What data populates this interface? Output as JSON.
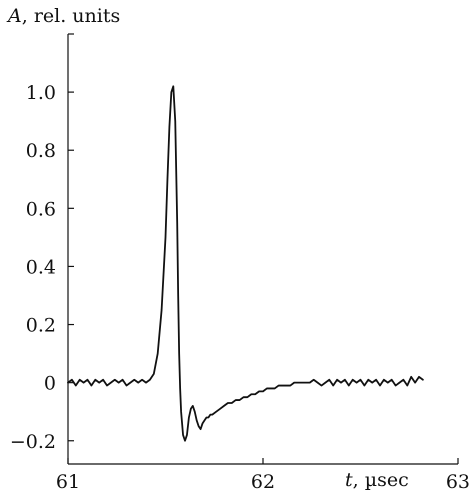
{
  "chart_data": {
    "type": "line",
    "title": "",
    "xlabel_italic": "t",
    "xlabel_rest": ", µsec",
    "ylabel_italic": "A",
    "ylabel_rest": ", rel. units",
    "xlim": [
      61,
      63
    ],
    "ylim": [
      -0.28,
      1.2
    ],
    "x_ticks": [
      61,
      62,
      63
    ],
    "x_tick_labels": [
      "61",
      "62",
      "63"
    ],
    "y_ticks": [
      -0.2,
      0,
      0.2,
      0.4,
      0.6,
      0.8,
      1.0
    ],
    "y_tick_labels": [
      "−0.2",
      "0",
      "0.2",
      "0.4",
      "0.6",
      "0.8",
      "1.0"
    ],
    "grid": false,
    "line_color": "#111111",
    "series": [
      {
        "x": [
          61.0,
          61.02,
          61.04,
          61.06,
          61.08,
          61.1,
          61.12,
          61.14,
          61.16,
          61.18,
          61.2,
          61.22,
          61.24,
          61.26,
          61.28,
          61.3,
          61.32,
          61.34,
          61.36,
          61.38,
          61.4,
          61.42,
          61.44,
          61.46,
          61.48,
          61.5,
          61.51,
          61.52,
          61.53,
          61.54,
          61.55,
          61.56,
          61.565,
          61.57,
          61.575,
          61.58,
          61.59,
          61.6,
          61.61,
          61.62,
          61.63,
          61.64,
          61.65,
          61.66,
          61.67,
          61.68,
          61.69,
          61.7,
          61.71,
          61.72,
          61.73,
          61.74,
          61.76,
          61.78,
          61.8,
          61.82,
          61.84,
          61.86,
          61.88,
          61.9,
          61.92,
          61.94,
          61.96,
          61.98,
          62.0,
          62.02,
          62.04,
          62.06,
          62.08,
          62.1,
          62.12,
          62.14,
          62.16,
          62.18,
          62.2,
          62.22,
          62.24,
          62.26,
          62.28,
          62.3,
          62.32,
          62.34,
          62.36,
          62.38,
          62.4,
          62.42,
          62.44,
          62.46,
          62.48,
          62.5,
          62.52,
          62.54,
          62.56,
          62.58,
          62.6,
          62.62,
          62.64,
          62.66,
          62.68,
          62.7,
          62.72,
          62.74,
          62.76,
          62.78,
          62.8,
          62.82
        ],
        "y": [
          0.0,
          0.01,
          -0.01,
          0.01,
          0.0,
          0.01,
          -0.01,
          0.01,
          0.0,
          0.01,
          -0.01,
          0.0,
          0.01,
          0.0,
          0.01,
          -0.01,
          0.0,
          0.01,
          0.0,
          0.01,
          0.0,
          0.01,
          0.03,
          0.1,
          0.25,
          0.5,
          0.7,
          0.88,
          1.0,
          1.02,
          0.9,
          0.55,
          0.3,
          0.1,
          -0.02,
          -0.1,
          -0.18,
          -0.2,
          -0.18,
          -0.12,
          -0.09,
          -0.08,
          -0.1,
          -0.13,
          -0.15,
          -0.16,
          -0.14,
          -0.13,
          -0.12,
          -0.12,
          -0.11,
          -0.11,
          -0.1,
          -0.09,
          -0.08,
          -0.07,
          -0.07,
          -0.06,
          -0.06,
          -0.05,
          -0.05,
          -0.04,
          -0.04,
          -0.03,
          -0.03,
          -0.02,
          -0.02,
          -0.02,
          -0.01,
          -0.01,
          -0.01,
          -0.01,
          0.0,
          0.0,
          0.0,
          0.0,
          0.0,
          0.01,
          0.0,
          -0.01,
          0.0,
          0.01,
          -0.01,
          0.01,
          0.0,
          0.01,
          -0.01,
          0.01,
          0.0,
          0.01,
          -0.01,
          0.01,
          0.0,
          0.01,
          -0.01,
          0.01,
          0.0,
          0.01,
          -0.01,
          0.0,
          0.01,
          -0.01,
          0.02,
          0.0,
          0.02,
          0.01
        ]
      }
    ]
  }
}
